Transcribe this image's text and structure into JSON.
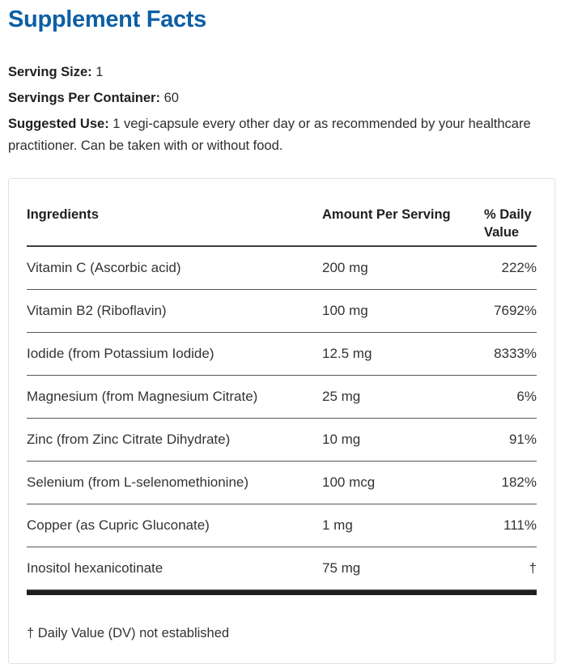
{
  "title": "Supplement Facts",
  "accent_color": "#0d5fa5",
  "serving_size": {
    "label": "Serving Size:",
    "value": "1"
  },
  "servings_per_container": {
    "label": "Servings Per Container:",
    "value": "60"
  },
  "suggested_use": {
    "label": "Suggested Use:",
    "value": "1 vegi-capsule every other day or as recommended by your healthcare practitioner. Can be taken with or without food."
  },
  "table": {
    "headers": [
      "Ingredients",
      "Amount Per Serving",
      "% Daily Value"
    ],
    "rows": [
      {
        "ingredient": "Vitamin C (Ascorbic acid)",
        "amount": "200 mg",
        "daily_value": "222%"
      },
      {
        "ingredient": "Vitamin B2 (Riboflavin)",
        "amount": "100 mg",
        "daily_value": "7692%"
      },
      {
        "ingredient": "Iodide (from Potassium Iodide)",
        "amount": "12.5 mg",
        "daily_value": "8333%"
      },
      {
        "ingredient": "Magnesium (from Magnesium Citrate)",
        "amount": "25 mg",
        "daily_value": "6%"
      },
      {
        "ingredient": "Zinc (from Zinc Citrate Dihydrate)",
        "amount": "10 mg",
        "daily_value": "91%"
      },
      {
        "ingredient": "Selenium (from L-selenomethionine)",
        "amount": "100 mcg",
        "daily_value": "182%"
      },
      {
        "ingredient": "Copper (as Cupric Gluconate)",
        "amount": "1 mg",
        "daily_value": "111%"
      },
      {
        "ingredient": "Inositol hexanicotinate",
        "amount": "75 mg",
        "daily_value": "†"
      }
    ],
    "footnote": "† Daily Value (DV) not established"
  }
}
